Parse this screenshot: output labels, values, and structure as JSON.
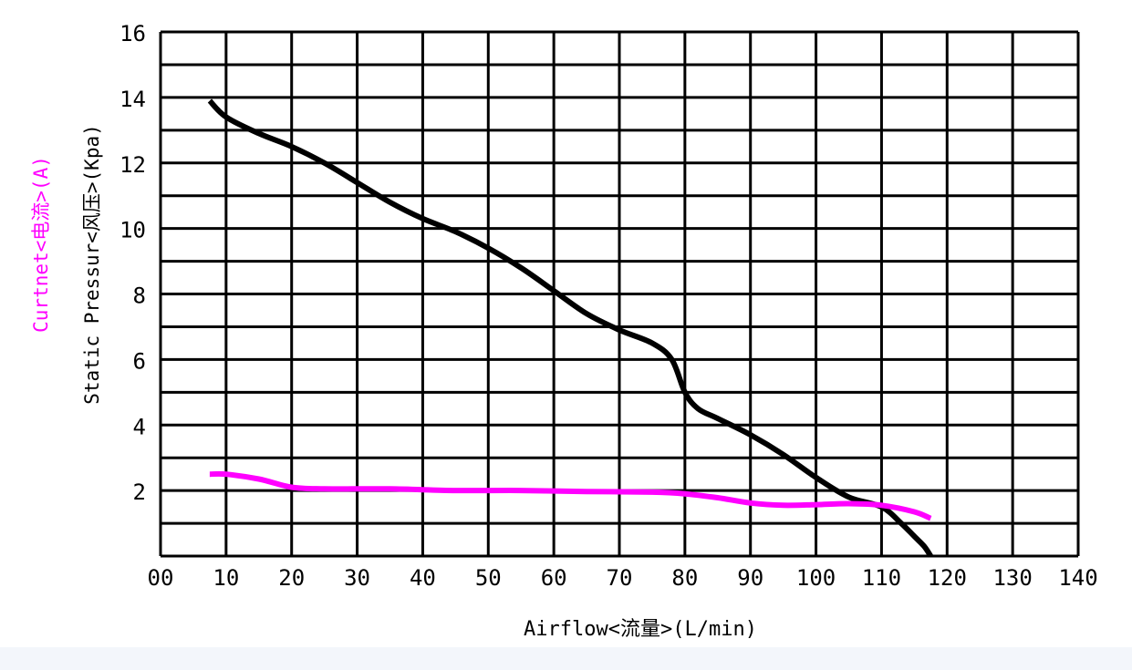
{
  "chart_data": {
    "type": "line",
    "title": "",
    "xlabel": "Airflow<流量>(L/min)",
    "ylabel": "Static Pressur<风压>(Kpa)",
    "ylabel2": "Curtnet<电流>(A)",
    "xlim": [
      0,
      140
    ],
    "ylim": [
      0,
      16
    ],
    "x_ticks": [
      "00",
      "10",
      "20",
      "30",
      "40",
      "50",
      "60",
      "70",
      "80",
      "90",
      "100",
      "110",
      "120",
      "130",
      "140"
    ],
    "y_ticks": [
      "2",
      "4",
      "6",
      "8",
      "10",
      "12",
      "14",
      "16"
    ],
    "grid": true,
    "series": [
      {
        "name": "",
        "color": "#000000",
        "x": [
          7.5,
          10,
          15,
          20,
          25,
          30,
          35,
          40,
          45,
          50,
          55,
          60,
          65,
          70,
          75,
          78,
          80,
          82,
          85,
          90,
          95,
          100,
          105,
          110,
          113,
          115,
          116.5,
          117.5
        ],
        "y": [
          13.9,
          13.4,
          12.9,
          12.5,
          12.0,
          11.4,
          10.8,
          10.3,
          9.9,
          9.4,
          8.8,
          8.1,
          7.4,
          6.9,
          6.5,
          6.0,
          5.0,
          4.5,
          4.2,
          3.7,
          3.1,
          2.4,
          1.8,
          1.5,
          1.0,
          0.6,
          0.3,
          0.0
        ]
      },
      {
        "name": "",
        "color": "#ff00ff",
        "x": [
          7.5,
          10,
          15,
          20,
          25,
          35,
          45,
          55,
          65,
          75,
          80,
          85,
          90,
          95,
          100,
          105,
          110,
          115,
          117.5
        ],
        "y": [
          2.5,
          2.5,
          2.35,
          2.1,
          2.05,
          2.05,
          2.0,
          2.0,
          1.97,
          1.95,
          1.9,
          1.78,
          1.62,
          1.55,
          1.57,
          1.6,
          1.55,
          1.35,
          1.15
        ]
      }
    ]
  }
}
